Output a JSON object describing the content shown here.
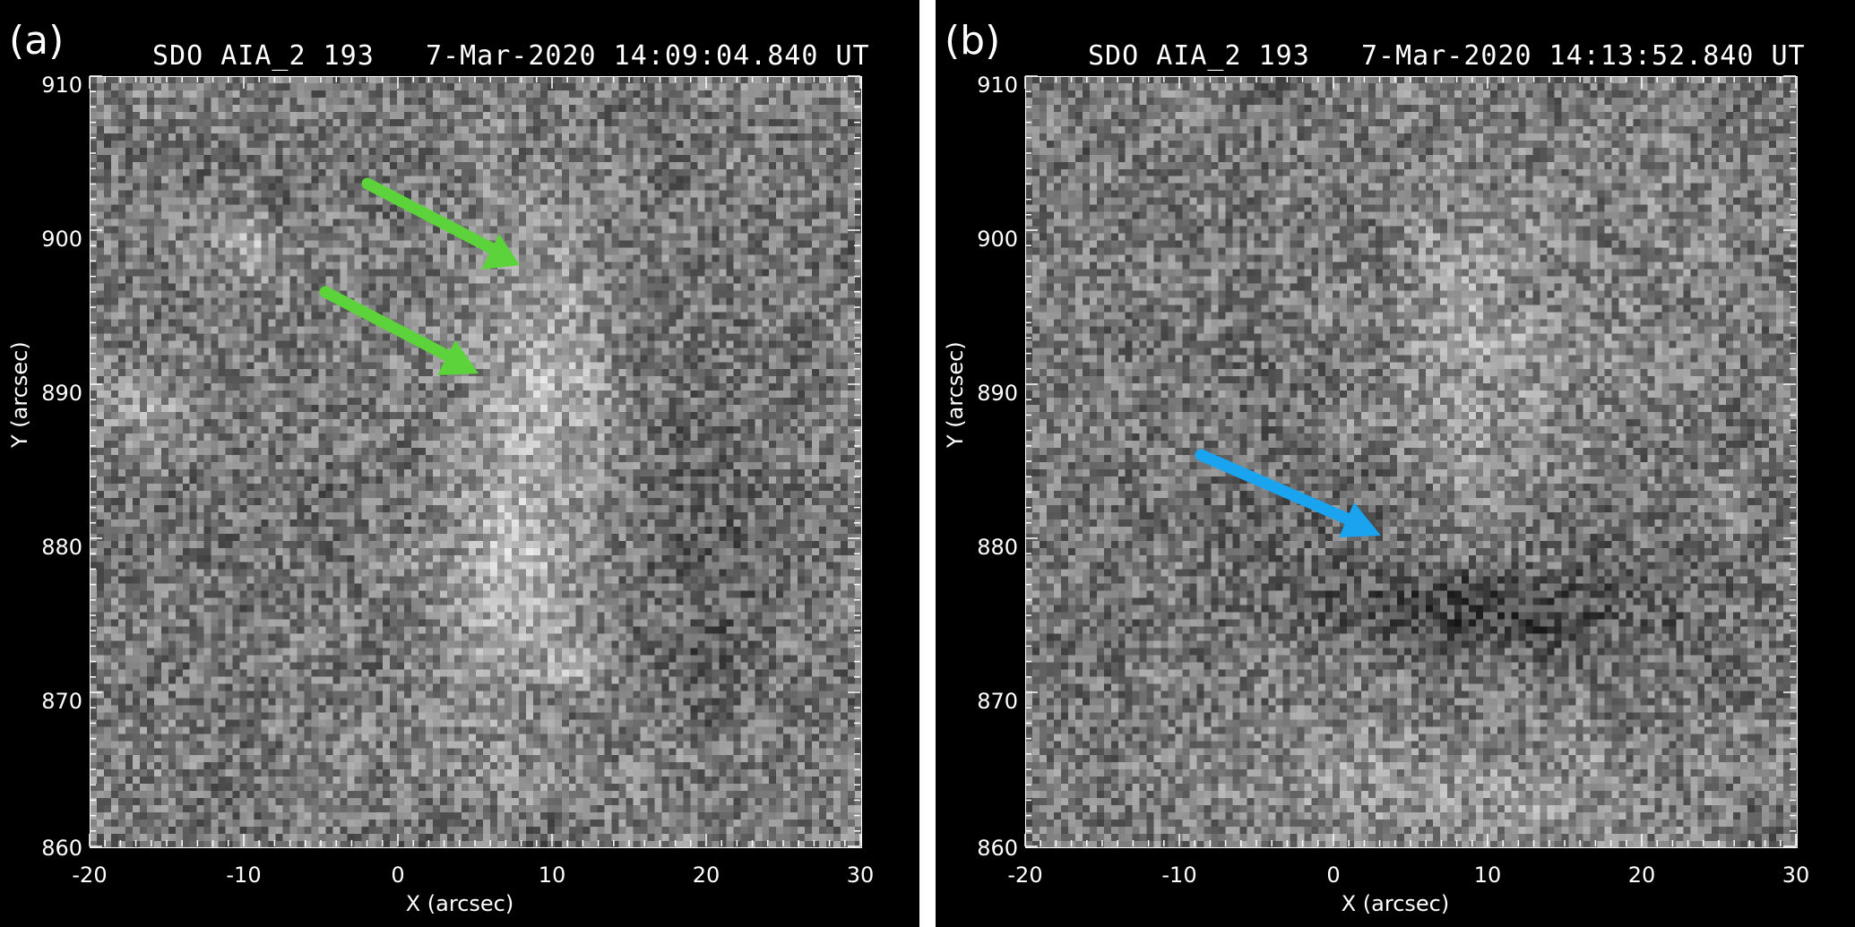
{
  "panels": [
    {
      "label": "(a)",
      "title": "SDO AIA_2 193   7-Mar-2020 14:09:04.840 UT",
      "xlabel": "X (arcsec)",
      "ylabel": "Y (arcsec)",
      "x_ticks": [
        "-20",
        "-10",
        "0",
        "10",
        "20",
        "30"
      ],
      "y_ticks": [
        "910",
        "900",
        "890",
        "880",
        "870",
        "860"
      ],
      "arrow_color": "#5cd33a",
      "arrows": 2
    },
    {
      "label": "(b)",
      "title": "SDO AIA_2 193   7-Mar-2020 14:13:52.840 UT",
      "xlabel": "X (arcsec)",
      "ylabel": "Y (arcsec)",
      "x_ticks": [
        "-20",
        "-10",
        "0",
        "10",
        "20",
        "30"
      ],
      "y_ticks": [
        "910",
        "900",
        "890",
        "880",
        "870",
        "860"
      ],
      "arrow_color": "#1aa3ef",
      "arrows": 1
    }
  ],
  "image_style": "grayscale solar EUV image"
}
